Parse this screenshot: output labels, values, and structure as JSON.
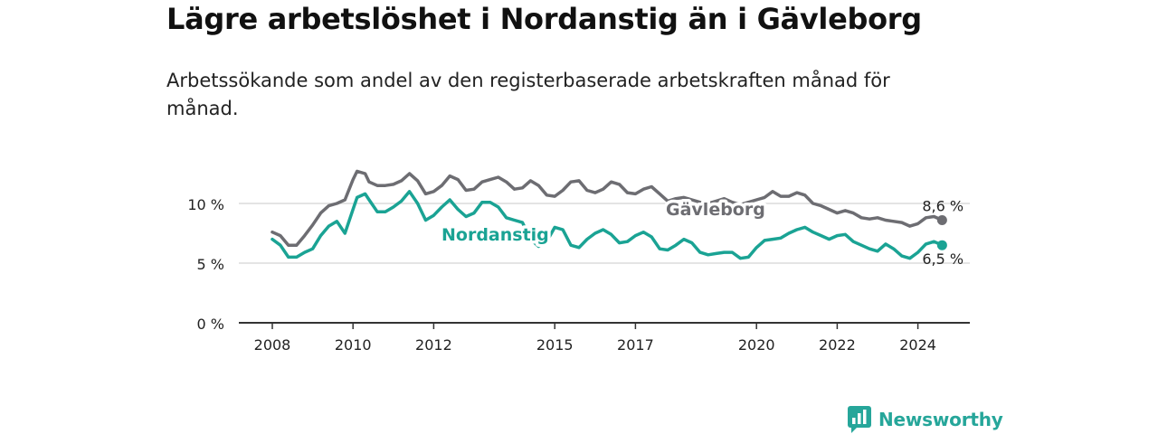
{
  "title": "Lägre arbetslöshet i Nordanstig än i Gävleborg",
  "subtitle": "Arbetssökande som andel av den registerbaserade arbetskraften månad för månad.",
  "brand": {
    "name": "Newsworthy",
    "color": "#26a69a",
    "icon": "bar-chart-bubble-icon"
  },
  "chart_data": {
    "type": "line",
    "ylim": [
      0,
      13.5
    ],
    "xlim": [
      2007.6,
      2025.2
    ],
    "y_ticks": [
      {
        "value": 0,
        "label": "0 %"
      },
      {
        "value": 5,
        "label": "5 %"
      },
      {
        "value": 10,
        "label": "10 %"
      }
    ],
    "x_ticks": [
      {
        "value": 2008,
        "label": "2008"
      },
      {
        "value": 2010,
        "label": "2010"
      },
      {
        "value": 2012,
        "label": "2012"
      },
      {
        "value": 2015,
        "label": "2015"
      },
      {
        "value": 2017,
        "label": "2017"
      },
      {
        "value": 2020,
        "label": "2020"
      },
      {
        "value": 2022,
        "label": "2022"
      },
      {
        "value": 2024,
        "label": "2024"
      }
    ],
    "grid": true,
    "series": [
      {
        "name": "Gävleborg",
        "color": "#6d6d72",
        "end_label": "8,6 %",
        "points": [
          [
            2008.0,
            7.6
          ],
          [
            2008.2,
            7.3
          ],
          [
            2008.4,
            6.5
          ],
          [
            2008.6,
            6.5
          ],
          [
            2008.8,
            7.3
          ],
          [
            2009.0,
            8.2
          ],
          [
            2009.2,
            9.2
          ],
          [
            2009.4,
            9.8
          ],
          [
            2009.6,
            10.0
          ],
          [
            2009.8,
            10.3
          ],
          [
            2010.0,
            12.0
          ],
          [
            2010.1,
            12.7
          ],
          [
            2010.3,
            12.5
          ],
          [
            2010.4,
            11.8
          ],
          [
            2010.6,
            11.5
          ],
          [
            2010.8,
            11.5
          ],
          [
            2011.0,
            11.6
          ],
          [
            2011.2,
            11.9
          ],
          [
            2011.4,
            12.5
          ],
          [
            2011.6,
            11.9
          ],
          [
            2011.8,
            10.8
          ],
          [
            2012.0,
            11.0
          ],
          [
            2012.2,
            11.5
          ],
          [
            2012.4,
            12.3
          ],
          [
            2012.6,
            12.0
          ],
          [
            2012.8,
            11.1
          ],
          [
            2013.0,
            11.2
          ],
          [
            2013.2,
            11.8
          ],
          [
            2013.4,
            12.0
          ],
          [
            2013.6,
            12.2
          ],
          [
            2013.8,
            11.8
          ],
          [
            2014.0,
            11.2
          ],
          [
            2014.2,
            11.3
          ],
          [
            2014.4,
            11.9
          ],
          [
            2014.6,
            11.5
          ],
          [
            2014.8,
            10.7
          ],
          [
            2015.0,
            10.6
          ],
          [
            2015.2,
            11.1
          ],
          [
            2015.4,
            11.8
          ],
          [
            2015.6,
            11.9
          ],
          [
            2015.8,
            11.1
          ],
          [
            2016.0,
            10.9
          ],
          [
            2016.2,
            11.2
          ],
          [
            2016.4,
            11.8
          ],
          [
            2016.6,
            11.6
          ],
          [
            2016.8,
            10.9
          ],
          [
            2017.0,
            10.8
          ],
          [
            2017.2,
            11.2
          ],
          [
            2017.4,
            11.4
          ],
          [
            2017.6,
            10.8
          ],
          [
            2017.8,
            10.2
          ],
          [
            2018.0,
            10.4
          ],
          [
            2018.2,
            10.5
          ],
          [
            2018.4,
            10.3
          ],
          [
            2018.6,
            10.1
          ],
          [
            2018.8,
            10.0
          ],
          [
            2019.0,
            10.2
          ],
          [
            2019.2,
            10.4
          ],
          [
            2019.4,
            10.1
          ],
          [
            2019.6,
            9.9
          ],
          [
            2019.8,
            10.1
          ],
          [
            2020.0,
            10.3
          ],
          [
            2020.2,
            10.5
          ],
          [
            2020.4,
            11.0
          ],
          [
            2020.6,
            10.6
          ],
          [
            2020.8,
            10.6
          ],
          [
            2021.0,
            10.9
          ],
          [
            2021.2,
            10.7
          ],
          [
            2021.4,
            10.0
          ],
          [
            2021.6,
            9.8
          ],
          [
            2021.8,
            9.5
          ],
          [
            2022.0,
            9.2
          ],
          [
            2022.2,
            9.4
          ],
          [
            2022.4,
            9.2
          ],
          [
            2022.6,
            8.8
          ],
          [
            2022.8,
            8.7
          ],
          [
            2023.0,
            8.8
          ],
          [
            2023.2,
            8.6
          ],
          [
            2023.4,
            8.5
          ],
          [
            2023.6,
            8.4
          ],
          [
            2023.8,
            8.1
          ],
          [
            2024.0,
            8.3
          ],
          [
            2024.2,
            8.8
          ],
          [
            2024.4,
            8.9
          ],
          [
            2024.6,
            8.6
          ]
        ]
      },
      {
        "name": "Nordanstig",
        "color": "#1aa394",
        "end_label": "6,5 %",
        "points": [
          [
            2008.0,
            7.0
          ],
          [
            2008.2,
            6.5
          ],
          [
            2008.4,
            5.5
          ],
          [
            2008.6,
            5.5
          ],
          [
            2008.8,
            5.9
          ],
          [
            2009.0,
            6.2
          ],
          [
            2009.2,
            7.3
          ],
          [
            2009.4,
            8.1
          ],
          [
            2009.6,
            8.5
          ],
          [
            2009.8,
            7.5
          ],
          [
            2010.0,
            9.5
          ],
          [
            2010.1,
            10.5
          ],
          [
            2010.3,
            10.8
          ],
          [
            2010.4,
            10.3
          ],
          [
            2010.6,
            9.3
          ],
          [
            2010.8,
            9.3
          ],
          [
            2011.0,
            9.7
          ],
          [
            2011.2,
            10.2
          ],
          [
            2011.4,
            11.0
          ],
          [
            2011.6,
            10.0
          ],
          [
            2011.8,
            8.6
          ],
          [
            2012.0,
            9.0
          ],
          [
            2012.2,
            9.7
          ],
          [
            2012.4,
            10.3
          ],
          [
            2012.6,
            9.5
          ],
          [
            2012.8,
            8.9
          ],
          [
            2013.0,
            9.2
          ],
          [
            2013.2,
            10.1
          ],
          [
            2013.4,
            10.1
          ],
          [
            2013.6,
            9.7
          ],
          [
            2013.8,
            8.8
          ],
          [
            2014.0,
            8.6
          ],
          [
            2014.2,
            8.4
          ],
          [
            2014.4,
            7.0
          ],
          [
            2014.6,
            6.4
          ],
          [
            2014.8,
            6.8
          ],
          [
            2015.0,
            8.0
          ],
          [
            2015.2,
            7.8
          ],
          [
            2015.4,
            6.5
          ],
          [
            2015.6,
            6.3
          ],
          [
            2015.8,
            7.0
          ],
          [
            2016.0,
            7.5
          ],
          [
            2016.2,
            7.8
          ],
          [
            2016.4,
            7.4
          ],
          [
            2016.6,
            6.7
          ],
          [
            2016.8,
            6.8
          ],
          [
            2017.0,
            7.3
          ],
          [
            2017.2,
            7.6
          ],
          [
            2017.4,
            7.2
          ],
          [
            2017.6,
            6.2
          ],
          [
            2017.8,
            6.1
          ],
          [
            2018.0,
            6.5
          ],
          [
            2018.2,
            7.0
          ],
          [
            2018.4,
            6.7
          ],
          [
            2018.6,
            5.9
          ],
          [
            2018.8,
            5.7
          ],
          [
            2019.0,
            5.8
          ],
          [
            2019.2,
            5.9
          ],
          [
            2019.4,
            5.9
          ],
          [
            2019.6,
            5.4
          ],
          [
            2019.8,
            5.5
          ],
          [
            2020.0,
            6.3
          ],
          [
            2020.2,
            6.9
          ],
          [
            2020.4,
            7.0
          ],
          [
            2020.6,
            7.1
          ],
          [
            2020.8,
            7.5
          ],
          [
            2021.0,
            7.8
          ],
          [
            2021.2,
            8.0
          ],
          [
            2021.4,
            7.6
          ],
          [
            2021.6,
            7.3
          ],
          [
            2021.8,
            7.0
          ],
          [
            2022.0,
            7.3
          ],
          [
            2022.2,
            7.4
          ],
          [
            2022.4,
            6.8
          ],
          [
            2022.6,
            6.5
          ],
          [
            2022.8,
            6.2
          ],
          [
            2023.0,
            6.0
          ],
          [
            2023.2,
            6.6
          ],
          [
            2023.4,
            6.2
          ],
          [
            2023.6,
            5.6
          ],
          [
            2023.8,
            5.4
          ],
          [
            2024.0,
            5.9
          ],
          [
            2024.2,
            6.6
          ],
          [
            2024.4,
            6.8
          ],
          [
            2024.6,
            6.5
          ]
        ]
      }
    ]
  }
}
